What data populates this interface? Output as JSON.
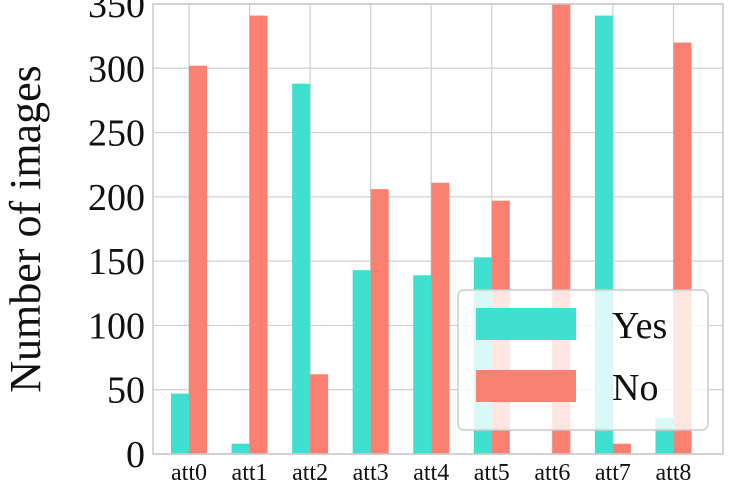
{
  "chart_data": {
    "type": "bar",
    "title": "",
    "xlabel": "",
    "ylabel": "Number of images",
    "ylim": [
      0,
      350
    ],
    "yticks": [
      0,
      50,
      100,
      150,
      200,
      250,
      300,
      350
    ],
    "categories": [
      "att0",
      "att1",
      "att2",
      "att3",
      "att4",
      "att5",
      "att6",
      "att7",
      "att8"
    ],
    "series": [
      {
        "name": "Yes",
        "color": "#40E0D0",
        "values": [
          47,
          8,
          288,
          143,
          139,
          153,
          0,
          341,
          28
        ]
      },
      {
        "name": "No",
        "color": "#FA8072",
        "values": [
          302,
          341,
          62,
          206,
          211,
          197,
          350,
          8,
          320
        ]
      }
    ],
    "grid": true,
    "legend_position": "lower-right"
  }
}
